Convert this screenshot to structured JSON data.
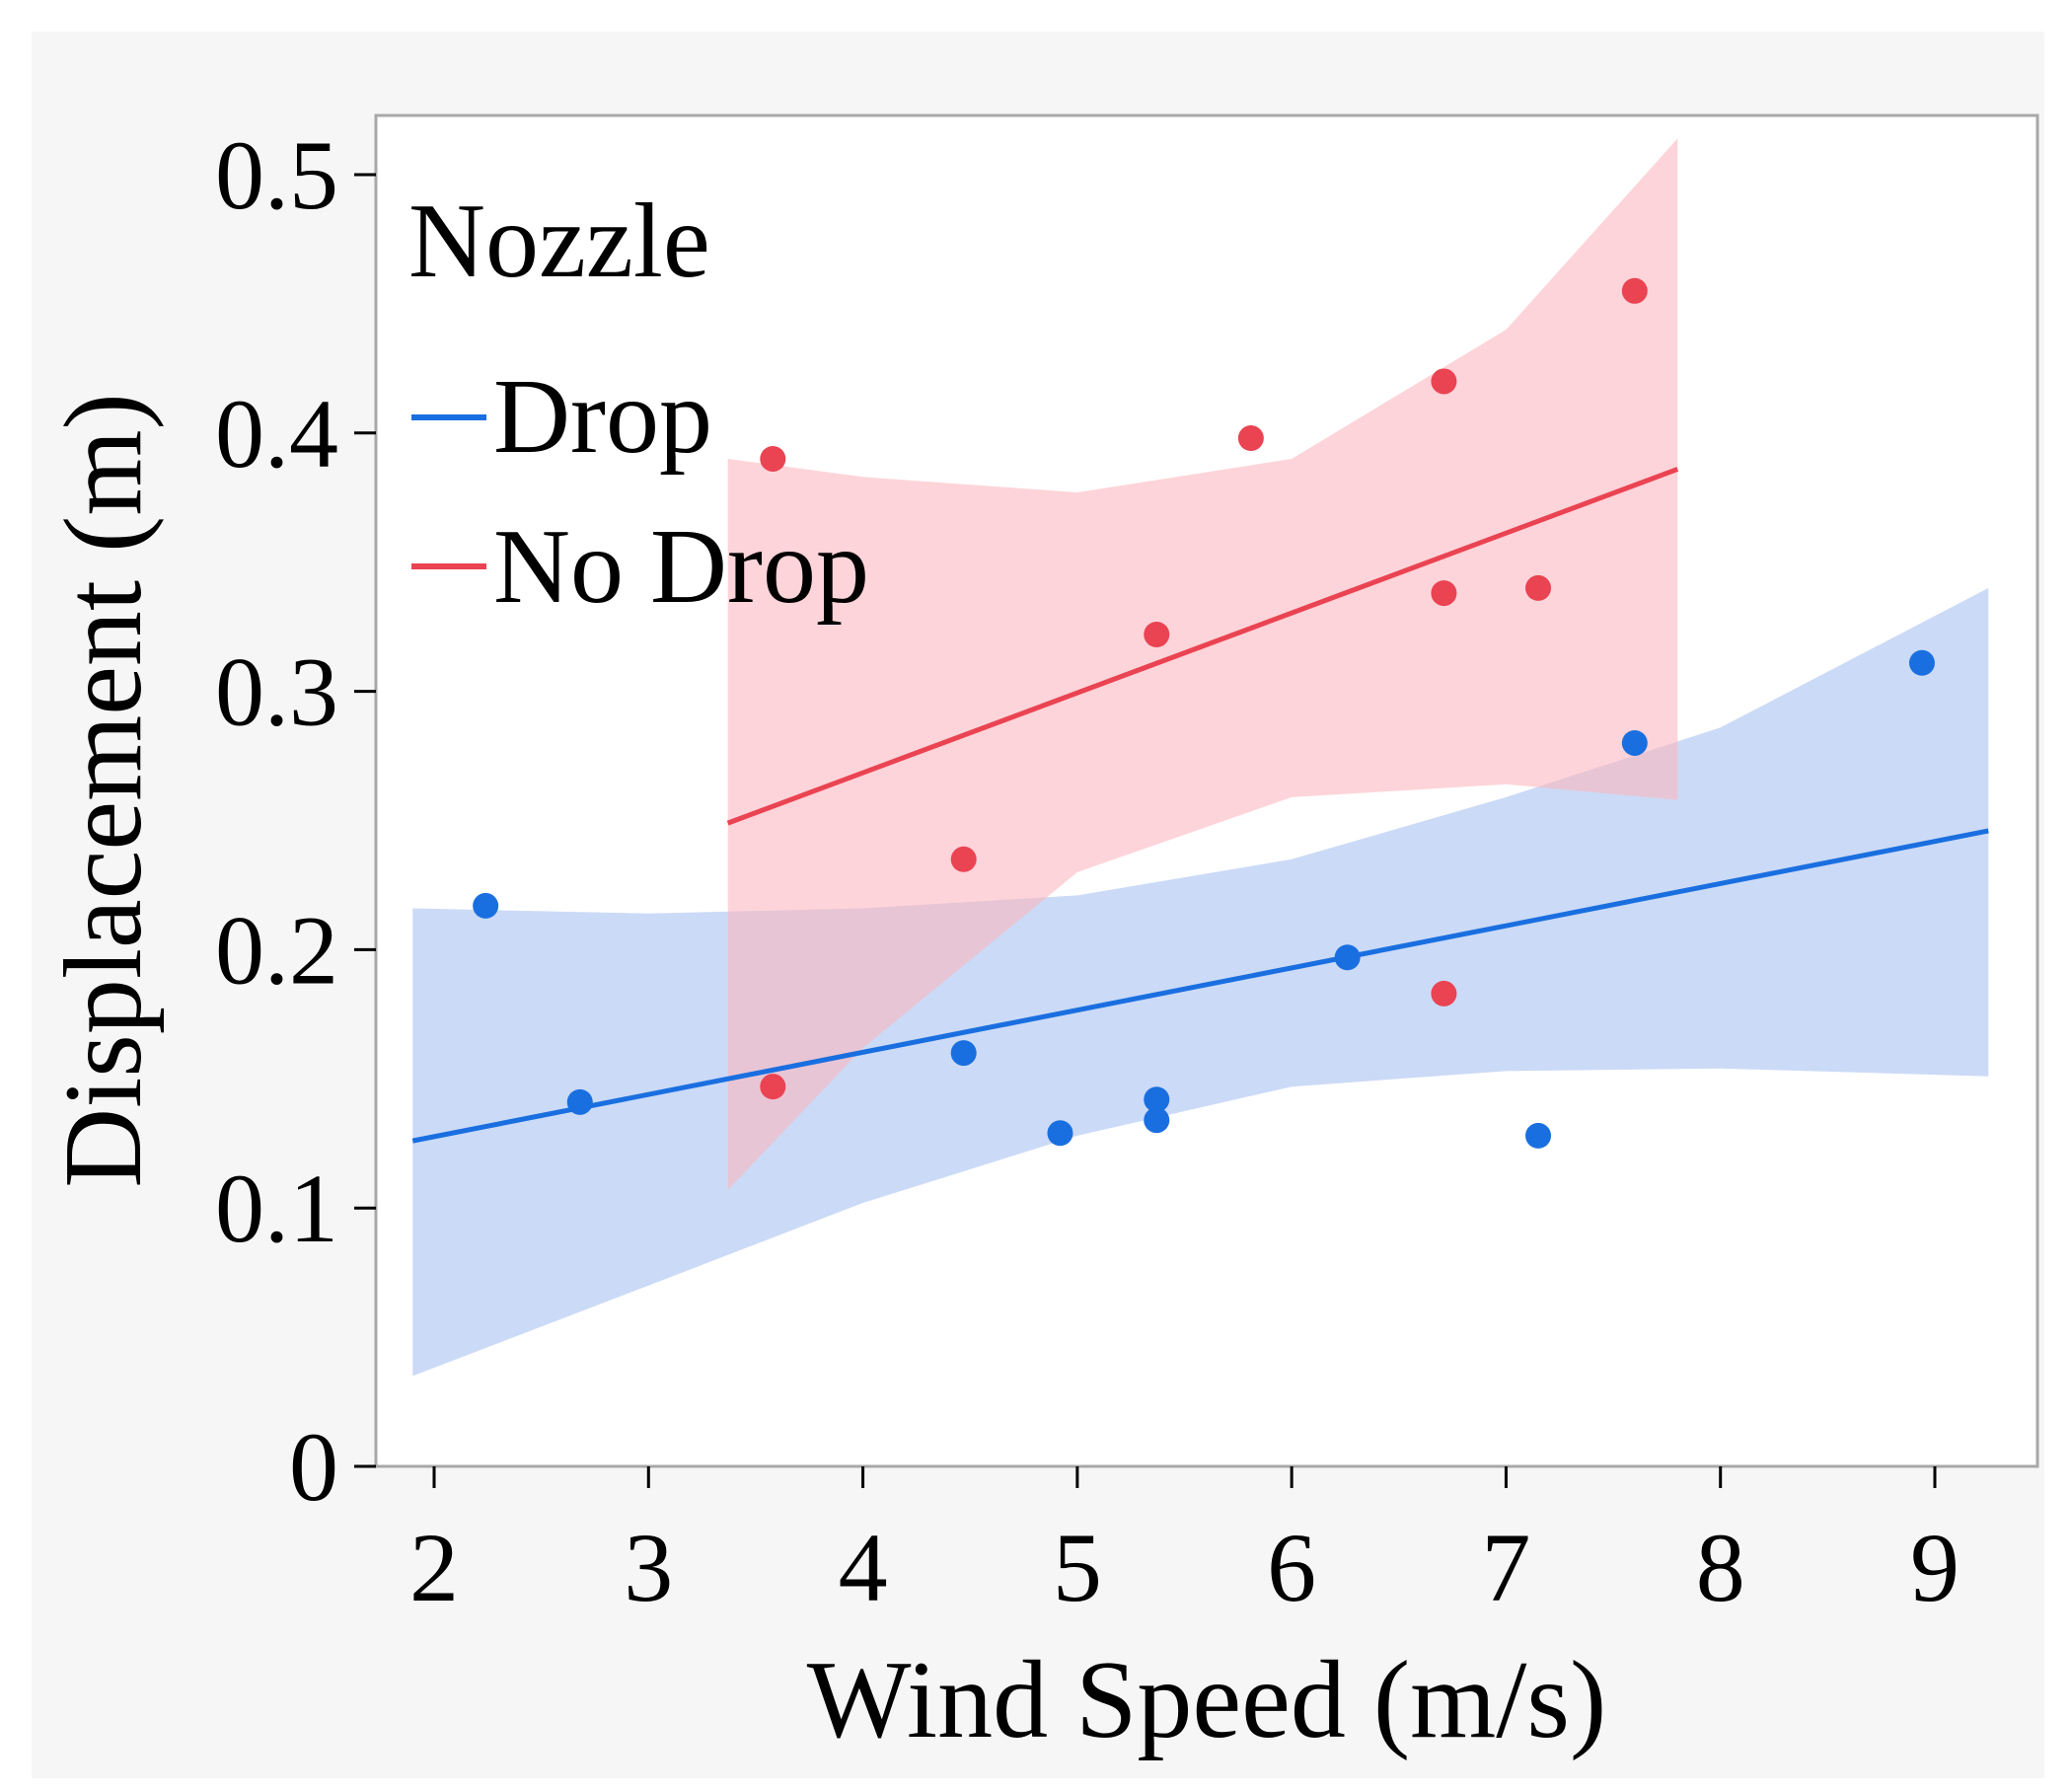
{
  "chart_data": {
    "type": "scatter",
    "xlabel": "Wind Speed (m/s)",
    "ylabel": "Displacement (m)",
    "xlim": [
      1.75,
      9.45
    ],
    "ylim": [
      0,
      0.52
    ],
    "xticks": [
      "2",
      "3",
      "4",
      "5",
      "6",
      "7",
      "8",
      "9"
    ],
    "yticks": [
      "0",
      "0.1",
      "0.2",
      "0.3",
      "0.4",
      "0.5"
    ],
    "grid": false,
    "legend": {
      "title": "Nozzle",
      "position": "top-left",
      "items": [
        {
          "label": "Drop",
          "color": "#1a6fe0"
        },
        {
          "label": "No Drop",
          "color": "#ea4352"
        }
      ]
    },
    "series": [
      {
        "name": "Drop",
        "color": "#1a6fe0",
        "band_color": "#a8c2f0",
        "points": [
          {
            "x": 2.24,
            "y": 0.217
          },
          {
            "x": 2.68,
            "y": 0.141
          },
          {
            "x": 4.47,
            "y": 0.16
          },
          {
            "x": 4.92,
            "y": 0.129
          },
          {
            "x": 5.37,
            "y": 0.142
          },
          {
            "x": 5.37,
            "y": 0.134
          },
          {
            "x": 6.26,
            "y": 0.197
          },
          {
            "x": 7.15,
            "y": 0.128
          },
          {
            "x": 7.6,
            "y": 0.28
          },
          {
            "x": 8.94,
            "y": 0.311
          }
        ],
        "fit": {
          "x": [
            1.9,
            9.25
          ],
          "y": [
            0.126,
            0.246
          ]
        },
        "band": {
          "x": [
            1.9,
            3.0,
            4.0,
            5.0,
            6.0,
            7.0,
            8.0,
            9.25
          ],
          "lower": [
            0.035,
            0.07,
            0.102,
            0.128,
            0.147,
            0.153,
            0.154,
            0.151
          ],
          "upper": [
            0.216,
            0.214,
            0.216,
            0.221,
            0.235,
            0.259,
            0.286,
            0.34
          ]
        }
      },
      {
        "name": "No Drop",
        "color": "#ea4352",
        "band_color": "#fbb8c0",
        "points": [
          {
            "x": 3.58,
            "y": 0.39
          },
          {
            "x": 3.58,
            "y": 0.147
          },
          {
            "x": 4.47,
            "y": 0.235
          },
          {
            "x": 5.37,
            "y": 0.322
          },
          {
            "x": 5.81,
            "y": 0.398
          },
          {
            "x": 6.71,
            "y": 0.42
          },
          {
            "x": 6.71,
            "y": 0.338
          },
          {
            "x": 6.71,
            "y": 0.183
          },
          {
            "x": 7.15,
            "y": 0.34
          },
          {
            "x": 7.6,
            "y": 0.455
          }
        ],
        "fit": {
          "x": [
            3.37,
            7.8
          ],
          "y": [
            0.249,
            0.386
          ]
        },
        "band": {
          "x": [
            3.37,
            4.0,
            5.0,
            6.0,
            7.0,
            7.8
          ],
          "lower": [
            0.107,
            0.162,
            0.23,
            0.259,
            0.264,
            0.258
          ],
          "upper": [
            0.39,
            0.383,
            0.377,
            0.39,
            0.44,
            0.514
          ]
        }
      }
    ]
  }
}
